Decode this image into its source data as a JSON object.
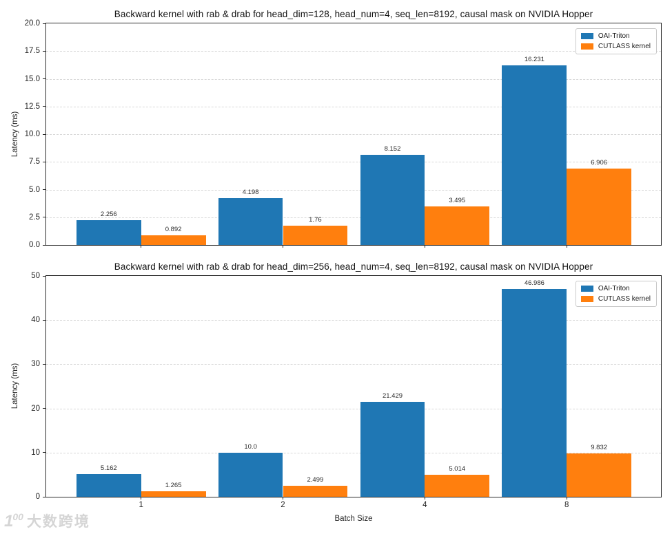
{
  "watermark": {
    "logo_digit": "1",
    "logo_zeros": "00",
    "brand_text": "大数跨境"
  },
  "chart_data": [
    {
      "type": "bar",
      "title": "Backward kernel with rab & drab for head_dim=128, head_num=4, seq_len=8192, causal mask on NVIDIA Hopper",
      "xlabel": "",
      "ylabel": "Latency (ms)",
      "ylim": [
        0,
        20
      ],
      "yticks": [
        "0.0",
        "2.5",
        "5.0",
        "7.5",
        "10.0",
        "12.5",
        "15.0",
        "17.5",
        "20.0"
      ],
      "categories": [
        "1",
        "2",
        "4",
        "8"
      ],
      "x_tick_labels_visible": false,
      "grid": true,
      "legend_position": "upper right",
      "series": [
        {
          "name": "OAI-Triton",
          "color": "#1f77b4",
          "values": [
            2.256,
            4.198,
            8.152,
            16.231
          ],
          "labels": [
            "2.256",
            "4.198",
            "8.152",
            "16.231"
          ]
        },
        {
          "name": "CUTLASS kernel",
          "color": "#ff7f0e",
          "values": [
            0.892,
            1.76,
            3.495,
            6.906
          ],
          "labels": [
            "0.892",
            "1.76",
            "3.495",
            "6.906"
          ]
        }
      ]
    },
    {
      "type": "bar",
      "title": "Backward kernel with rab & drab for head_dim=256, head_num=4, seq_len=8192, causal mask on NVIDIA Hopper",
      "xlabel": "Batch Size",
      "ylabel": "Latency (ms)",
      "ylim": [
        0,
        50
      ],
      "yticks": [
        "0",
        "10",
        "20",
        "30",
        "40",
        "50"
      ],
      "categories": [
        "1",
        "2",
        "4",
        "8"
      ],
      "x_tick_labels_visible": true,
      "grid": true,
      "legend_position": "upper right",
      "series": [
        {
          "name": "OAI-Triton",
          "color": "#1f77b4",
          "values": [
            5.162,
            10.0,
            21.429,
            46.986
          ],
          "labels": [
            "5.162",
            "10.0",
            "21.429",
            "46.986"
          ]
        },
        {
          "name": "CUTLASS kernel",
          "color": "#ff7f0e",
          "values": [
            1.265,
            2.499,
            5.014,
            9.832
          ],
          "labels": [
            "1.265",
            "2.499",
            "5.014",
            "9.832"
          ]
        }
      ]
    }
  ]
}
